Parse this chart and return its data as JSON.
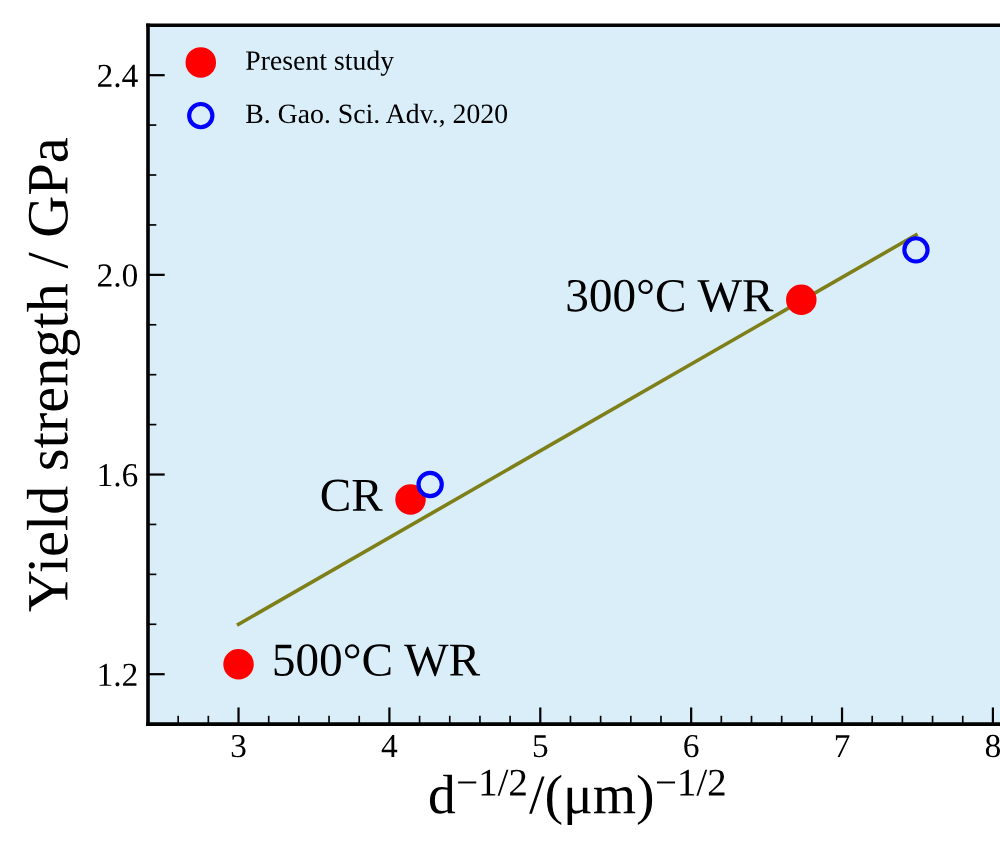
{
  "chart_data": {
    "type": "scatter",
    "xlabel": "d$^{−1/2}$/(μm)$^{−1/2}$",
    "ylabel": "Yield strength / GPa",
    "xlim": [
      2.4,
      8.1
    ],
    "xticks": [
      3,
      4,
      5,
      6,
      7,
      8
    ],
    "ylim": [
      1.1,
      2.5
    ],
    "yticks": [
      1.2,
      1.6,
      {
        "value": 2.0,
        "label": "2.0"
      },
      2.4
    ],
    "legend": "top left",
    "grid": false,
    "series": [
      {
        "name": "Present study",
        "color": "#ff0000",
        "marker": "circle",
        "x": [
          3.0,
          4.14,
          6.73
        ],
        "values": [
          1.22,
          1.55,
          1.95
        ]
      },
      {
        "name": "B. Gao. Sci. Adv., 2020",
        "color": "#0000ff",
        "marker": "circle",
        "x": [
          4.27,
          7.49
        ],
        "values": [
          1.58,
          2.05
        ]
      },
      {
        "type": "line",
        "color": "#7f7f1a",
        "marker": "none",
        "x": [
          3.0,
          7.49
        ],
        "values": [
          1.3,
          2.08
        ]
      }
    ],
    "annotations": [
      {
        "text": "500°C WR",
        "x": 3.0,
        "y": 1.22
      },
      {
        "text": "CR",
        "x": 4.14,
        "y": 1.55
      },
      {
        "text": "300°C WR",
        "x": 6.73,
        "y": 1.95
      }
    ]
  }
}
